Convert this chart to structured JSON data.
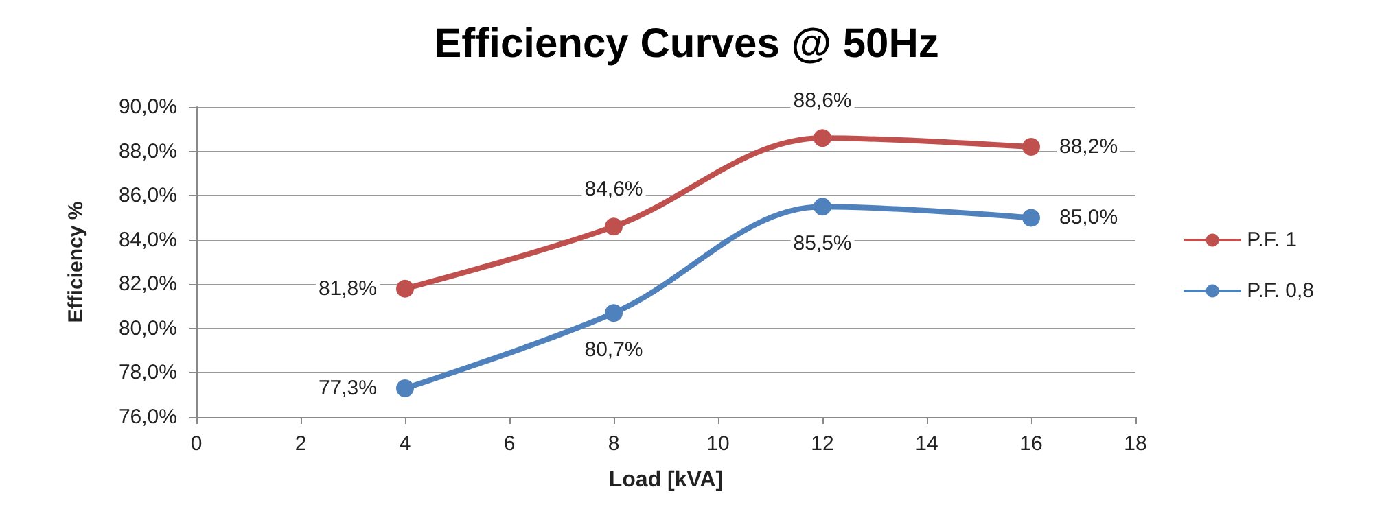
{
  "chart_data": {
    "type": "line",
    "title": "Efficiency Curves @ 50Hz",
    "xlabel": "Load [kVA]",
    "ylabel": "Efficiency %",
    "x": [
      4,
      8,
      12,
      16
    ],
    "series": [
      {
        "name": "P.F. 1",
        "color": "#c0504d",
        "values": [
          81.8,
          84.6,
          88.6,
          88.2
        ],
        "value_labels": [
          "81,8%",
          "84,6%",
          "88,6%",
          "88,2%"
        ]
      },
      {
        "name": "P.F. 0,8",
        "color": "#4f81bd",
        "values": [
          77.3,
          80.7,
          85.5,
          85.0
        ],
        "value_labels": [
          "77,3%",
          "80,7%",
          "85,5%",
          "85,0%"
        ]
      }
    ],
    "xlim": [
      0,
      18
    ],
    "xticks": [
      0,
      2,
      4,
      6,
      8,
      10,
      12,
      14,
      16,
      18
    ],
    "ylim": [
      76,
      90
    ],
    "yticks": [
      {
        "value": 76,
        "label": "76,0%"
      },
      {
        "value": 78,
        "label": "78,0%"
      },
      {
        "value": 80,
        "label": "80,0%"
      },
      {
        "value": 82,
        "label": "82,0%"
      },
      {
        "value": 84,
        "label": "84,0%"
      },
      {
        "value": 86,
        "label": "86,0%"
      },
      {
        "value": 88,
        "label": "88,0%"
      },
      {
        "value": 90,
        "label": "90,0%"
      }
    ],
    "grid": "y",
    "legend": "right",
    "marker": "circle",
    "line_style": "solid"
  }
}
